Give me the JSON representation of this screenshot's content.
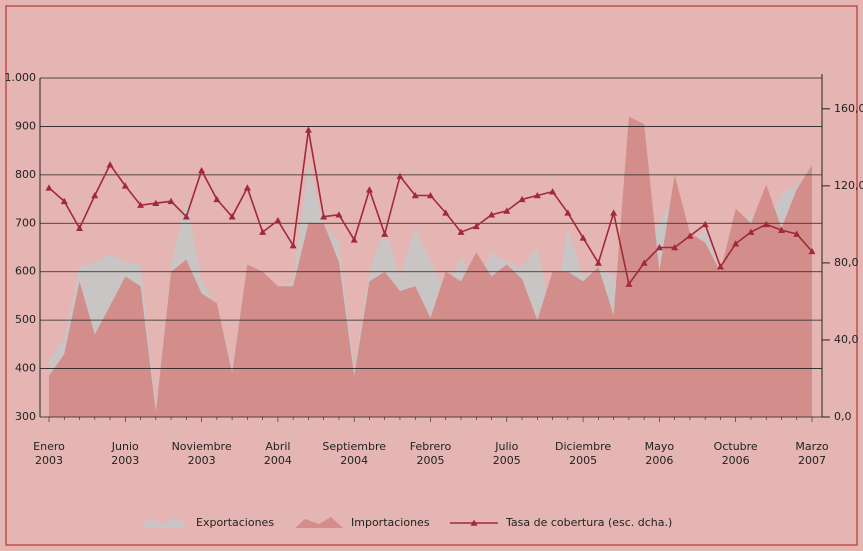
{
  "chart_data": {
    "type": "area",
    "categories": [
      "Enero 2003",
      null,
      null,
      null,
      null,
      "Junio 2003",
      null,
      null,
      null,
      null,
      "Noviembre 2003",
      null,
      null,
      null,
      null,
      "Abril 2004",
      null,
      null,
      null,
      null,
      "Septiembre 2004",
      null,
      null,
      null,
      null,
      "Febrero 2005",
      null,
      null,
      null,
      null,
      "Julio 2005",
      null,
      null,
      null,
      null,
      "Diciembre 2005",
      null,
      null,
      null,
      null,
      "Mayo 2006",
      null,
      null,
      null,
      null,
      "Octubre 2006",
      null,
      null,
      null,
      null,
      "Marzo 2007"
    ],
    "series": [
      {
        "name": "Exportaciones",
        "color": "#c9c5c5",
        "values": [
          420,
          460,
          610,
          620,
          635,
          620,
          615,
          320,
          610,
          750,
          580,
          530,
          400,
          610,
          600,
          570,
          580,
          820,
          700,
          660,
          400,
          600,
          690,
          590,
          690,
          620,
          560,
          630,
          580,
          640,
          620,
          610,
          650,
          500,
          690,
          590,
          610,
          590,
          510,
          650,
          700,
          760,
          650,
          690,
          600,
          670,
          720,
          700,
          760,
          780,
          800
        ]
      },
      {
        "name": "Importaciones",
        "color": "#d38e8b",
        "values": [
          385,
          430,
          580,
          470,
          530,
          590,
          570,
          310,
          600,
          625,
          555,
          535,
          390,
          615,
          600,
          570,
          570,
          700,
          700,
          620,
          385,
          580,
          600,
          560,
          570,
          505,
          600,
          580,
          640,
          590,
          615,
          585,
          500,
          600,
          600,
          580,
          610,
          510,
          920,
          905,
          600,
          800,
          680,
          660,
          600,
          730,
          700,
          780,
          690,
          770,
          820
        ]
      },
      {
        "name": "Tasa de cobertura (esc. dcha.)",
        "type": "line",
        "axis": "y2",
        "color": "#a3283a",
        "values": [
          119,
          112,
          98,
          115,
          131,
          120,
          110,
          111,
          112,
          104,
          128,
          113,
          104,
          119,
          96,
          102,
          89,
          149,
          104,
          105,
          92,
          118,
          95,
          125,
          115,
          115,
          106,
          96,
          99,
          105,
          107,
          113,
          115,
          117,
          106,
          93,
          80,
          106,
          69,
          80,
          88,
          88,
          94,
          100,
          78,
          90,
          96,
          100,
          97,
          95,
          86
        ]
      }
    ],
    "ylim": [
      300,
      1000
    ],
    "yticks": [
      300,
      400,
      500,
      600,
      700,
      800,
      900,
      {
        "value": 1000,
        "label": "1.000"
      }
    ],
    "y2lim": [
      0,
      176
    ],
    "y2ticks": [
      {
        "value": 0,
        "label": "0,0"
      },
      {
        "value": 40,
        "label": "40,0"
      },
      {
        "value": 80,
        "label": "80,0"
      },
      {
        "value": 120,
        "label": "120,0"
      },
      {
        "value": 160,
        "label": "160,0"
      }
    ],
    "grid": true,
    "legend": "bottom"
  }
}
